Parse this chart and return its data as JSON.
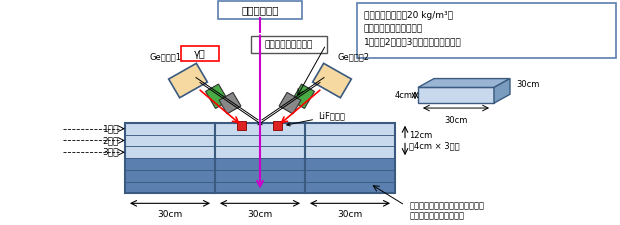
{
  "bg_color": "#ffffff",
  "neutron_beam_label": "中性子ビーム",
  "gamma_label": "γ線",
  "collimator_label": "ガンマ線コリメータ",
  "detector1_label": "Ge検出器1",
  "detector2_label": "Ge検出器2",
  "lif_label": "LiFタイル",
  "layer1_label": "1層目",
  "layer2_label": "2層目",
  "layer3_label": "3層目",
  "dim_label": "12cm\n（4cm × 3枚）",
  "dim_30cm_labels": [
    "30cm",
    "30cm",
    "30cm"
  ],
  "info_box_text": "塩化物イオン濃度20 kg/m³の\nコンクリートプレートを\n1層目、2層目、3層目のみに入れる。",
  "bottom_note": "周りのコンクリートプレートは、\n塩分を添加していない。",
  "plate_4cm": "4cm",
  "plate_30cm_bottom": "30cm",
  "plate_30cm_side": "30cm",
  "concrete_color": "#5b7fae",
  "concrete_light": "#c8d8ed",
  "concrete_dark": "#3a5a80",
  "detector_body_color": "#f5d9a0",
  "detector_outline_color": "#3a5a80",
  "green_color": "#4aaa44",
  "neutron_arrow_color": "#cc00cc",
  "red_arrow_color": "#ff0000"
}
